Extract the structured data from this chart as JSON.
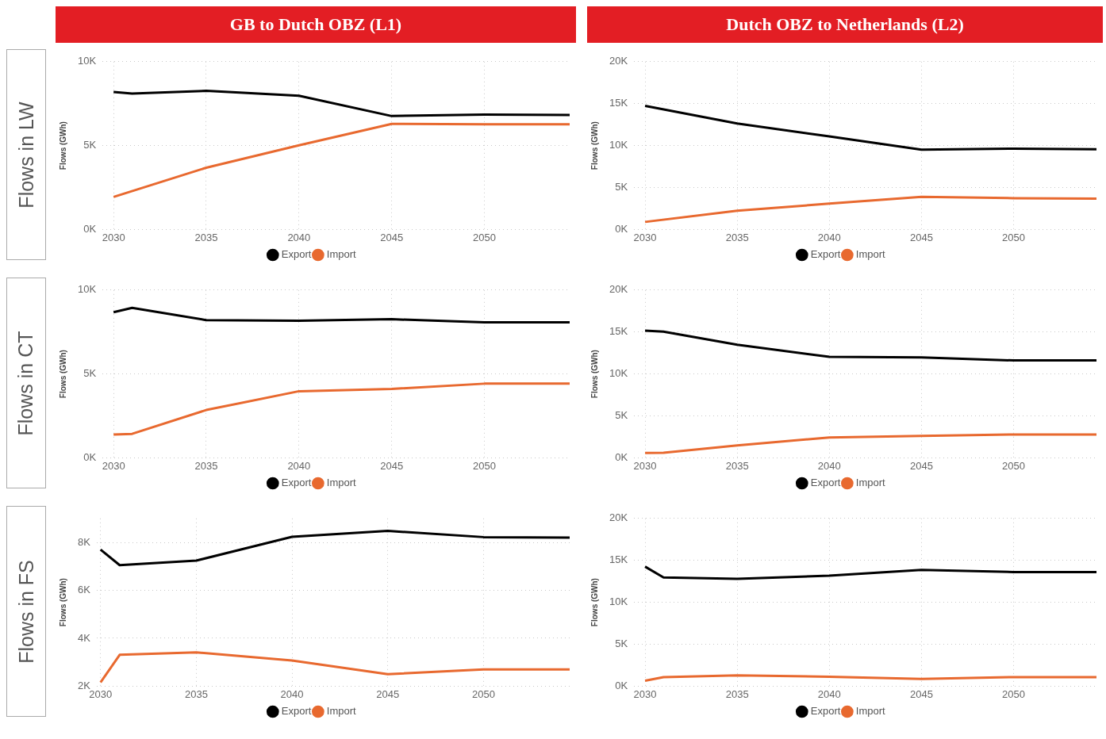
{
  "chart_data": [
    {
      "type": "line",
      "title": "GB to Dutch OBZ (L1)",
      "annotations": [
        "Flows in LW"
      ],
      "ylabel": "Flows (GWh)",
      "xlim": [
        2029.4,
        2054.6
      ],
      "ylim": [
        0,
        10000
      ],
      "xticks": [
        2030,
        2035,
        2040,
        2045,
        2050
      ],
      "yticks": [
        {
          "value": 0,
          "label": "0K"
        },
        {
          "value": 5000,
          "label": "5K"
        },
        {
          "value": 10000,
          "label": "10K"
        }
      ],
      "grid": true,
      "legend": "bottom",
      "marker": "none",
      "line_style": "solid",
      "series": [
        {
          "name": "Export",
          "color": "#000000",
          "x": [
            2030,
            2031,
            2035,
            2040,
            2045,
            2050,
            2054.6
          ],
          "values": [
            8190,
            8100,
            8260,
            7970,
            6760,
            6850,
            6830
          ]
        },
        {
          "name": "Import",
          "color": "#e8692f",
          "x": [
            2030,
            2035,
            2040,
            2045,
            2050,
            2054.6
          ],
          "values": [
            1940,
            3680,
            5020,
            6290,
            6270,
            6270
          ]
        }
      ]
    },
    {
      "type": "line",
      "title": "Dutch OBZ to Netherlands (L2)",
      "ylabel": "Flows (GWh)",
      "xlim": [
        2029.4,
        2054.5
      ],
      "ylim": [
        0,
        20000
      ],
      "xticks": [
        2030,
        2035,
        2040,
        2045,
        2050
      ],
      "yticks": [
        {
          "value": 0,
          "label": "0K"
        },
        {
          "value": 5000,
          "label": "5K"
        },
        {
          "value": 10000,
          "label": "10K"
        },
        {
          "value": 15000,
          "label": "15K"
        },
        {
          "value": 20000,
          "label": "20K"
        }
      ],
      "grid": true,
      "legend": "bottom",
      "marker": "none",
      "line_style": "solid",
      "series": [
        {
          "name": "Export",
          "color": "#000000",
          "x": [
            2030,
            2035,
            2040,
            2045,
            2050,
            2054.5
          ],
          "values": [
            14730,
            12630,
            11090,
            9510,
            9640,
            9550
          ]
        },
        {
          "name": "Import",
          "color": "#e8692f",
          "x": [
            2030,
            2035,
            2040,
            2045,
            2050,
            2054.5
          ],
          "values": [
            900,
            2230,
            3080,
            3900,
            3730,
            3680
          ]
        }
      ]
    },
    {
      "type": "line",
      "annotations": [
        "Flows in CT"
      ],
      "ylabel": "Flows (GWh)",
      "xlim": [
        2029.4,
        2054.6
      ],
      "ylim": [
        0,
        10000
      ],
      "xticks": [
        2030,
        2035,
        2040,
        2045,
        2050
      ],
      "yticks": [
        {
          "value": 0,
          "label": "0K"
        },
        {
          "value": 5000,
          "label": "5K"
        },
        {
          "value": 10000,
          "label": "10K"
        }
      ],
      "grid": true,
      "legend": "bottom",
      "marker": "none",
      "line_style": "solid",
      "series": [
        {
          "name": "Export",
          "color": "#000000",
          "x": [
            2030,
            2031,
            2035,
            2040,
            2045,
            2050,
            2054.6
          ],
          "values": [
            8680,
            8940,
            8210,
            8170,
            8260,
            8080,
            8080
          ]
        },
        {
          "name": "Import",
          "color": "#e8692f",
          "x": [
            2030,
            2031,
            2035,
            2040,
            2045,
            2050,
            2054.6
          ],
          "values": [
            1390,
            1430,
            2850,
            3970,
            4110,
            4420,
            4420
          ]
        }
      ]
    },
    {
      "type": "line",
      "ylabel": "Flows (GWh)",
      "xlim": [
        2029.4,
        2054.5
      ],
      "ylim": [
        0,
        20000
      ],
      "xticks": [
        2030,
        2035,
        2040,
        2045,
        2050
      ],
      "yticks": [
        {
          "value": 0,
          "label": "0K"
        },
        {
          "value": 5000,
          "label": "5K"
        },
        {
          "value": 10000,
          "label": "10K"
        },
        {
          "value": 15000,
          "label": "15K"
        },
        {
          "value": 20000,
          "label": "20K"
        }
      ],
      "grid": true,
      "legend": "bottom",
      "marker": "none",
      "line_style": "solid",
      "series": [
        {
          "name": "Export",
          "color": "#000000",
          "x": [
            2030,
            2031,
            2035,
            2040,
            2045,
            2050,
            2054.5
          ],
          "values": [
            15170,
            15040,
            13480,
            12040,
            11960,
            11610,
            11610
          ]
        },
        {
          "name": "Import",
          "color": "#e8692f",
          "x": [
            2030,
            2031,
            2035,
            2040,
            2045,
            2050,
            2054.5
          ],
          "values": [
            570,
            610,
            1480,
            2430,
            2610,
            2780,
            2780
          ]
        }
      ]
    },
    {
      "type": "line",
      "annotations": [
        "Flows in FS"
      ],
      "ylabel": "Flows (GWh)",
      "xlim": [
        2029.8,
        2054.5
      ],
      "ylim": [
        2000,
        9000
      ],
      "xticks": [
        2030,
        2035,
        2040,
        2045,
        2050
      ],
      "yticks": [
        {
          "value": 2000,
          "label": "2K"
        },
        {
          "value": 4000,
          "label": "4K"
        },
        {
          "value": 6000,
          "label": "6K"
        },
        {
          "value": 8000,
          "label": "8K"
        }
      ],
      "grid": true,
      "legend": "bottom",
      "marker": "none",
      "line_style": "solid",
      "series": [
        {
          "name": "Export",
          "color": "#000000",
          "x": [
            2030,
            2031,
            2035,
            2040,
            2045,
            2050,
            2054.5
          ],
          "values": [
            7700,
            7050,
            7240,
            8230,
            8480,
            8220,
            8200
          ]
        },
        {
          "name": "Import",
          "color": "#e8692f",
          "x": [
            2030,
            2031,
            2035,
            2040,
            2045,
            2050,
            2054.5
          ],
          "values": [
            2160,
            3310,
            3410,
            3070,
            2500,
            2700,
            2700
          ]
        }
      ]
    },
    {
      "type": "line",
      "ylabel": "Flows (GWh)",
      "xlim": [
        2029.4,
        2054.5
      ],
      "ylim": [
        0,
        20000
      ],
      "xticks": [
        2030,
        2035,
        2040,
        2045,
        2050
      ],
      "yticks": [
        {
          "value": 0,
          "label": "0K"
        },
        {
          "value": 5000,
          "label": "5K"
        },
        {
          "value": 10000,
          "label": "10K"
        },
        {
          "value": 15000,
          "label": "15K"
        },
        {
          "value": 20000,
          "label": "20K"
        }
      ],
      "grid": true,
      "legend": "bottom",
      "marker": "none",
      "line_style": "solid",
      "series": [
        {
          "name": "Export",
          "color": "#000000",
          "x": [
            2030,
            2031,
            2035,
            2040,
            2045,
            2050,
            2054.5
          ],
          "values": [
            14250,
            12960,
            12790,
            13180,
            13870,
            13610,
            13610
          ]
        },
        {
          "name": "Import",
          "color": "#e8692f",
          "x": [
            2030,
            2031,
            2035,
            2040,
            2045,
            2050,
            2054.5
          ],
          "values": [
            650,
            1080,
            1300,
            1120,
            860,
            1080,
            1080
          ]
        }
      ]
    }
  ]
}
